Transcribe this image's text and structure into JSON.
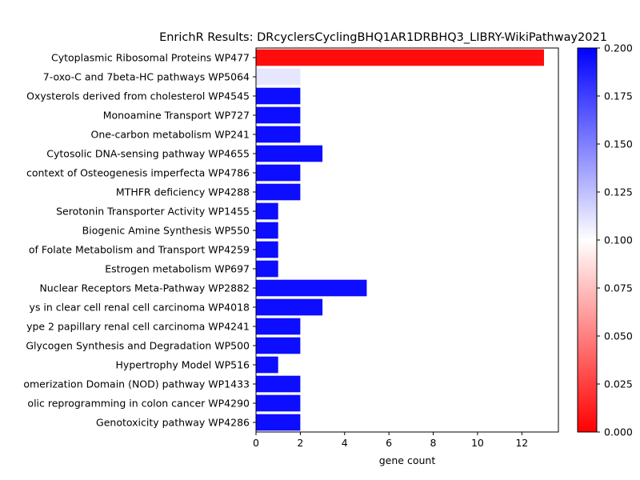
{
  "chart_data": {
    "type": "bar",
    "orientation": "horizontal",
    "title": "EnrichR Results: DRcyclersCyclingBHQ1AR1DRBHQ3_LIBRY-WikiPathway2021",
    "xlabel": "gene count",
    "ylabel": "",
    "xlim": [
      0,
      13.65
    ],
    "x_ticks": [
      "0",
      "2",
      "4",
      "6",
      "8",
      "10",
      "12"
    ],
    "categories": [
      "Cytoplasmic Ribosomal Proteins WP477",
      "7-oxo-C and 7beta-HC pathways WP5064",
      "Oxysterols derived from cholesterol WP4545",
      "Monoamine Transport WP727",
      "One-carbon metabolism WP241",
      "Cytosolic DNA-sensing pathway WP4655",
      "context of Osteogenesis imperfecta WP4786",
      "MTHFR deficiency WP4288",
      "Serotonin Transporter Activity WP1455",
      "Biogenic Amine Synthesis WP550",
      "of Folate Metabolism and Transport WP4259",
      "Estrogen metabolism WP697",
      "Nuclear Receptors Meta-Pathway WP2882",
      "ys in clear cell renal cell carcinoma WP4018",
      "ype 2 papillary renal cell carcinoma WP4241",
      "Glycogen Synthesis and Degradation WP500",
      "Hypertrophy Model WP516",
      "omerization Domain (NOD) pathway WP1433",
      "olic reprogramming in colon cancer WP4290",
      "Genotoxicity pathway WP4286"
    ],
    "values": [
      13,
      2,
      2,
      2,
      2,
      3,
      2,
      2,
      1,
      1,
      1,
      1,
      5,
      3,
      2,
      2,
      1,
      2,
      2,
      2
    ],
    "color_values": [
      0.005,
      0.11,
      0.195,
      0.195,
      0.195,
      0.195,
      0.195,
      0.195,
      0.195,
      0.195,
      0.195,
      0.195,
      0.195,
      0.195,
      0.195,
      0.195,
      0.195,
      0.195,
      0.195,
      0.195
    ],
    "colorbar": {
      "colormap": "bwr_r",
      "range": [
        0,
        0.2
      ],
      "ticks": [
        "0.000",
        "0.025",
        "0.050",
        "0.075",
        "0.100",
        "0.125",
        "0.150",
        "0.175",
        "0.200"
      ],
      "colors": {
        "low": "#ff0000",
        "mid": "#ffffff",
        "high": "#0000ff"
      }
    },
    "grid": false
  }
}
